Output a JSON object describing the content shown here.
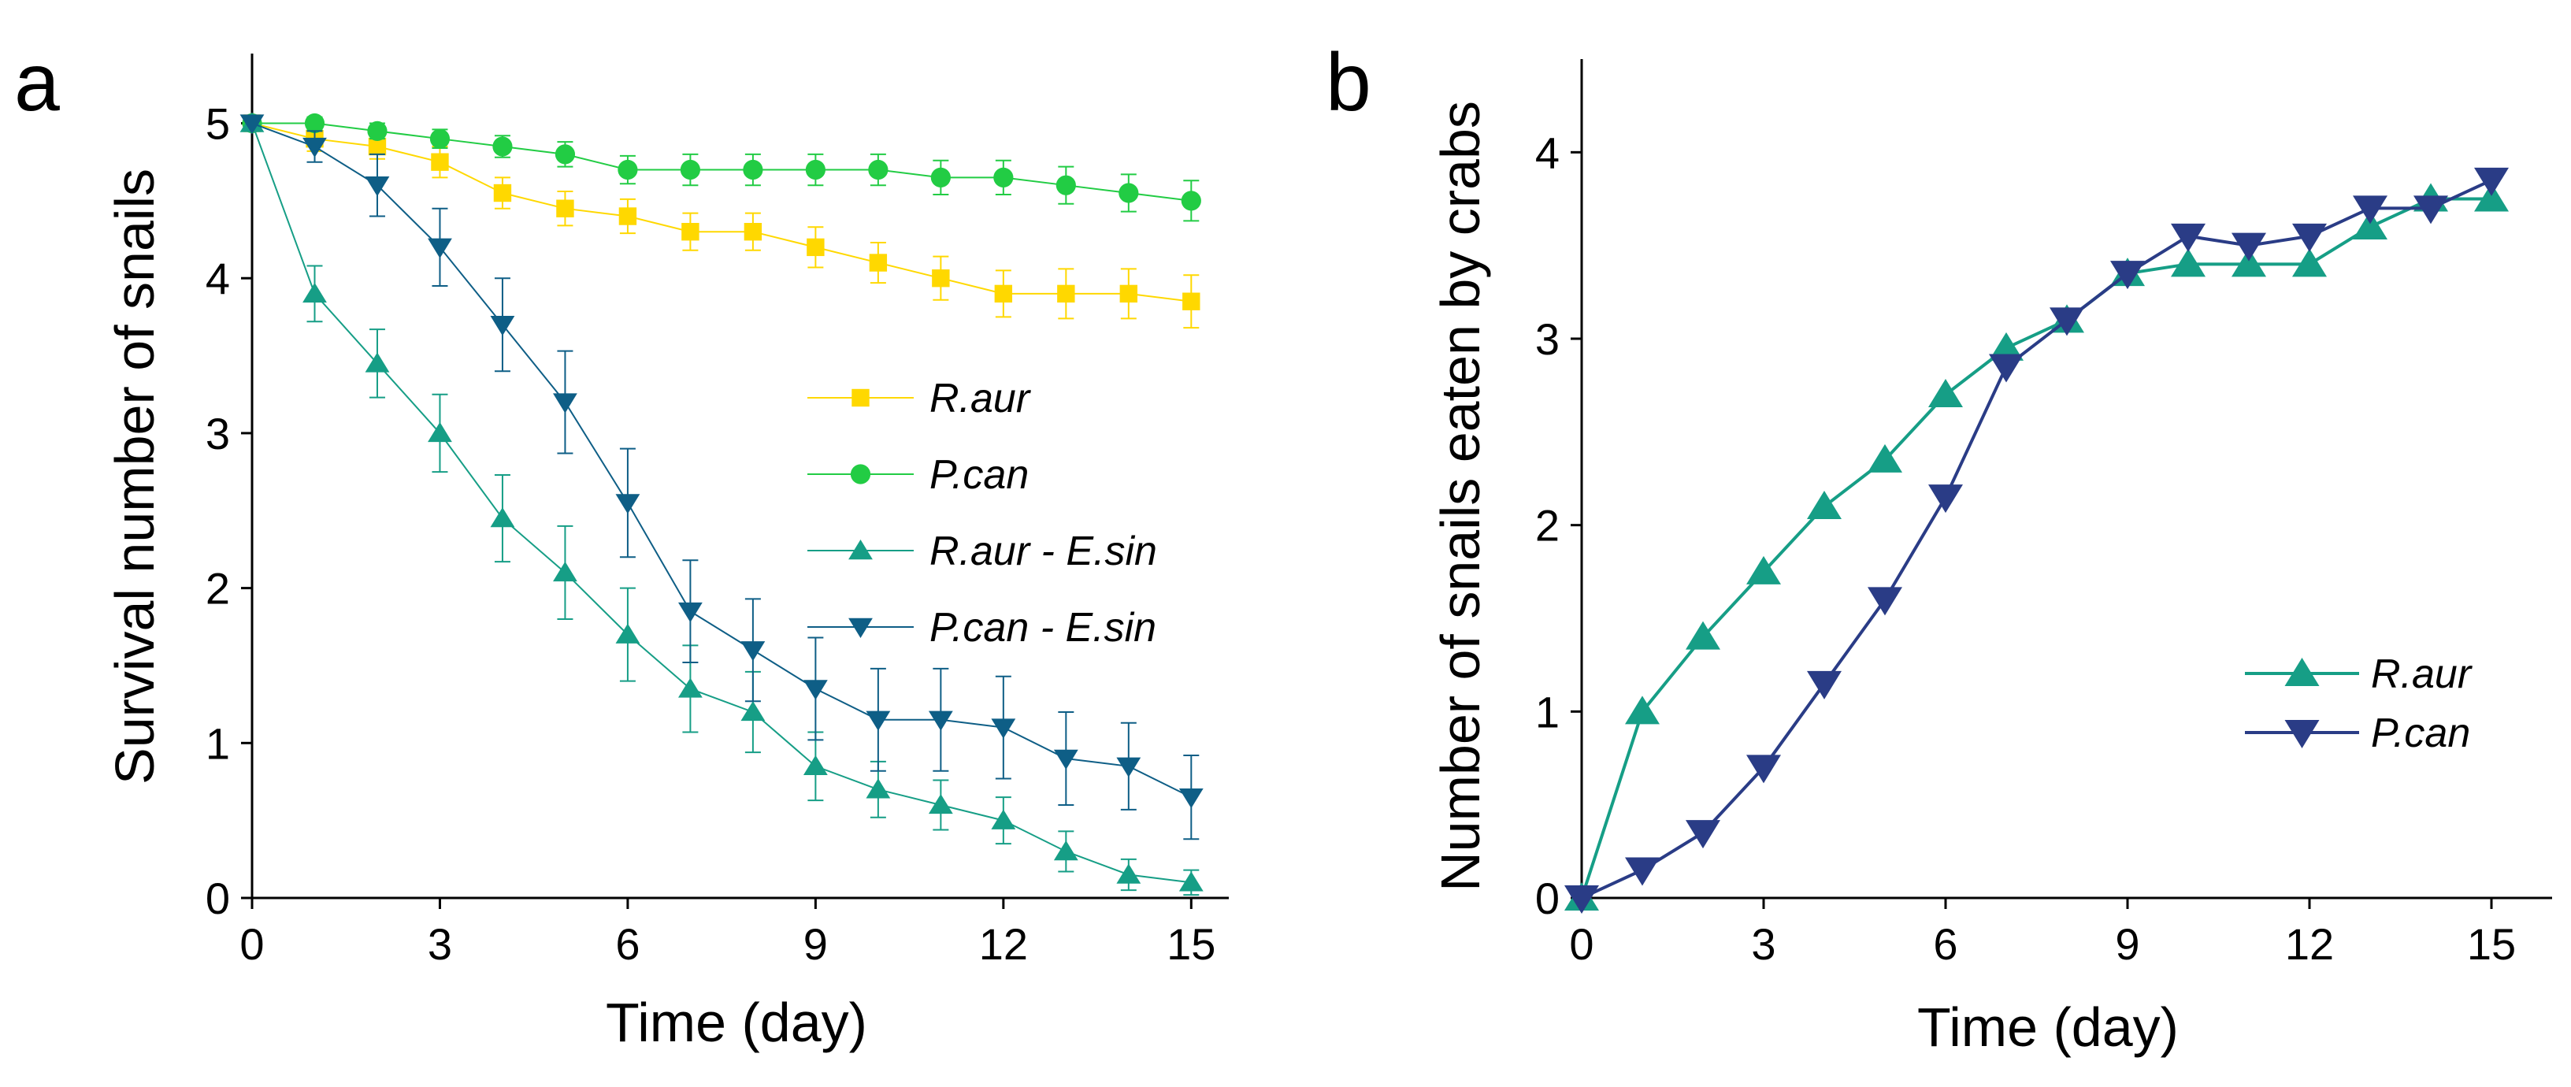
{
  "figure": {
    "panel_a_letter": "a",
    "panel_b_letter": "b"
  },
  "chart_data": [
    {
      "type": "line",
      "panel": "a",
      "title": "",
      "xlabel": "Time (day)",
      "ylabel": "Survival number of snails",
      "xlim": [
        0,
        15.6
      ],
      "ylim": [
        0,
        5.45
      ],
      "xticks": [
        0,
        3,
        6,
        9,
        12,
        15
      ],
      "yticks": [
        0,
        1,
        2,
        3,
        4,
        5
      ],
      "xtick_labels": [
        "0",
        "3",
        "6",
        "9",
        "12",
        "15"
      ],
      "ytick_labels": [
        "0",
        "1",
        "2",
        "3",
        "4",
        "5"
      ],
      "legend_position": "center-right",
      "x": [
        0,
        1,
        2,
        3,
        4,
        5,
        6,
        7,
        8,
        9,
        10,
        11,
        12,
        13,
        14,
        15
      ],
      "series": [
        {
          "name": "R.aur",
          "color": "#ffd800",
          "marker": "square",
          "values": [
            5,
            4.9,
            4.85,
            4.75,
            4.55,
            4.45,
            4.4,
            4.3,
            4.3,
            4.2,
            4.1,
            4.0,
            3.9,
            3.9,
            3.9,
            3.85
          ],
          "errors": [
            0,
            0.08,
            0.08,
            0.1,
            0.1,
            0.11,
            0.11,
            0.12,
            0.12,
            0.13,
            0.13,
            0.14,
            0.15,
            0.16,
            0.16,
            0.17
          ]
        },
        {
          "name": "P.can",
          "color": "#22cc44",
          "marker": "circle",
          "values": [
            5,
            5.0,
            4.95,
            4.9,
            4.85,
            4.8,
            4.7,
            4.7,
            4.7,
            4.7,
            4.7,
            4.65,
            4.65,
            4.6,
            4.55,
            4.5
          ],
          "errors": [
            0,
            0.04,
            0.05,
            0.06,
            0.07,
            0.08,
            0.09,
            0.1,
            0.1,
            0.1,
            0.1,
            0.11,
            0.11,
            0.12,
            0.12,
            0.13
          ]
        },
        {
          "name": "R.aur - E.sin",
          "color": "#169e86",
          "marker": "triangle-up",
          "values": [
            5,
            3.9,
            3.45,
            3.0,
            2.45,
            2.1,
            1.7,
            1.35,
            1.2,
            0.85,
            0.7,
            0.6,
            0.5,
            0.3,
            0.15,
            0.1
          ],
          "errors": [
            0,
            0.18,
            0.22,
            0.25,
            0.28,
            0.3,
            0.3,
            0.28,
            0.26,
            0.22,
            0.18,
            0.16,
            0.15,
            0.13,
            0.1,
            0.08
          ]
        },
        {
          "name": "P.can - E.sin",
          "color": "#0e5e86",
          "marker": "triangle-down",
          "values": [
            5,
            4.85,
            4.6,
            4.2,
            3.7,
            3.2,
            2.55,
            1.85,
            1.6,
            1.35,
            1.15,
            1.15,
            1.1,
            0.9,
            0.85,
            0.65
          ],
          "errors": [
            0,
            0.1,
            0.2,
            0.25,
            0.3,
            0.33,
            0.35,
            0.33,
            0.33,
            0.33,
            0.33,
            0.33,
            0.33,
            0.3,
            0.28,
            0.27
          ]
        }
      ]
    },
    {
      "type": "line",
      "panel": "b",
      "title": "",
      "xlabel": "Time (day)",
      "ylabel": "Number of snails eaten by crabs",
      "xlim": [
        0,
        16
      ],
      "ylim": [
        0,
        4.5
      ],
      "xticks": [
        0,
        3,
        6,
        9,
        12,
        15
      ],
      "yticks": [
        0,
        1,
        2,
        3,
        4
      ],
      "xtick_labels": [
        "0",
        "3",
        "6",
        "9",
        "12",
        "15"
      ],
      "ytick_labels": [
        "0",
        "1",
        "2",
        "3",
        "4"
      ],
      "legend_position": "right",
      "x": [
        0,
        1,
        2,
        3,
        4,
        5,
        6,
        7,
        8,
        9,
        10,
        11,
        12,
        13,
        14,
        15
      ],
      "series": [
        {
          "name": "R.aur",
          "color": "#169e86",
          "marker": "triangle-up",
          "values": [
            0,
            1.0,
            1.4,
            1.75,
            2.1,
            2.35,
            2.7,
            2.95,
            3.1,
            3.35,
            3.4,
            3.4,
            3.4,
            3.6,
            3.75,
            3.75
          ]
        },
        {
          "name": "P.can",
          "color": "#2a3c86",
          "marker": "triangle-down",
          "values": [
            0,
            0.15,
            0.35,
            0.7,
            1.15,
            1.6,
            2.15,
            2.85,
            3.1,
            3.35,
            3.55,
            3.5,
            3.55,
            3.7,
            3.7,
            3.85
          ]
        }
      ]
    }
  ]
}
